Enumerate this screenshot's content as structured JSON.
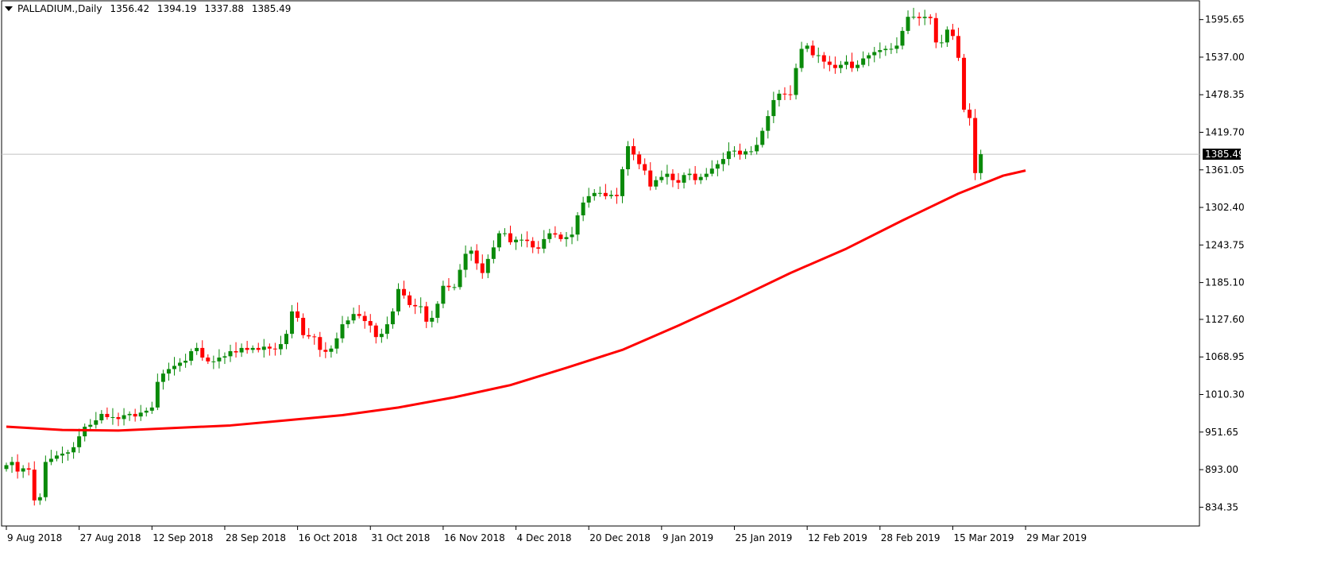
{
  "header": {
    "symbol": "PALLADIUM.,Daily",
    "open": "1356.42",
    "high": "1394.19",
    "low": "1337.88",
    "close": "1385.49"
  },
  "colors": {
    "bull": "#0a8a0a",
    "bear": "#ff0000",
    "ma": "#ff0000",
    "current_line": "#c0c0c0",
    "price_box_bg": "#000000",
    "price_box_fg": "#ffffff"
  },
  "chart_data": {
    "type": "candlestick",
    "title": "PALLADIUM.,Daily",
    "ylim": [
      805,
      1625
    ],
    "y_ticks": [
      "1595.65",
      "1537.00",
      "1478.35",
      "1419.70",
      "1361.05",
      "1302.40",
      "1243.75",
      "1185.10",
      "1127.60",
      "1068.95",
      "1010.30",
      "951.65",
      "893.00",
      "834.35"
    ],
    "current_price": "1385.49",
    "x_labels": [
      "9 Aug 2018",
      "27 Aug 2018",
      "12 Sep 2018",
      "28 Sep 2018",
      "16 Oct 2018",
      "31 Oct 2018",
      "16 Nov 2018",
      "4 Dec 2018",
      "20 Dec 2018",
      "9 Jan 2019",
      "25 Jan 2019",
      "12 Feb 2019",
      "28 Feb 2019",
      "15 Mar 2019",
      "29 Mar 2019"
    ],
    "x_label_index": [
      0,
      13,
      26,
      39,
      52,
      65,
      78,
      91,
      104,
      117,
      130,
      143,
      156,
      169,
      182
    ],
    "closes": [
      900,
      905,
      890,
      895,
      893,
      845,
      850,
      905,
      910,
      915,
      918,
      920,
      928,
      945,
      960,
      963,
      970,
      980,
      975,
      975,
      972,
      978,
      980,
      976,
      982,
      985,
      990,
      1030,
      1043,
      1050,
      1055,
      1060,
      1063,
      1078,
      1083,
      1068,
      1062,
      1062,
      1068,
      1070,
      1078,
      1076,
      1083,
      1080,
      1083,
      1080,
      1085,
      1082,
      1081,
      1089,
      1105,
      1140,
      1130,
      1103,
      1101,
      1100,
      1080,
      1077,
      1082,
      1098,
      1120,
      1126,
      1136,
      1133,
      1125,
      1118,
      1100,
      1105,
      1120,
      1140,
      1175,
      1165,
      1150,
      1148,
      1148,
      1124,
      1130,
      1152,
      1180,
      1178,
      1178,
      1205,
      1230,
      1235,
      1215,
      1200,
      1222,
      1240,
      1262,
      1262,
      1248,
      1252,
      1252,
      1250,
      1240,
      1238,
      1253,
      1262,
      1260,
      1253,
      1256,
      1260,
      1290,
      1310,
      1320,
      1325,
      1325,
      1320,
      1322,
      1320,
      1362,
      1398,
      1385,
      1370,
      1360,
      1335,
      1345,
      1350,
      1355,
      1345,
      1341,
      1353,
      1355,
      1345,
      1350,
      1355,
      1363,
      1370,
      1378,
      1390,
      1391,
      1385,
      1390,
      1390,
      1400,
      1422,
      1445,
      1470,
      1480,
      1479,
      1478,
      1520,
      1550,
      1555,
      1540,
      1540,
      1530,
      1525,
      1520,
      1525,
      1530,
      1520,
      1525,
      1535,
      1540,
      1545,
      1548,
      1550,
      1550,
      1555,
      1578,
      1600,
      1600,
      1598,
      1600,
      1598,
      1560,
      1560,
      1580,
      1570,
      1536,
      1455,
      1442,
      1356,
      1385.49
    ],
    "moving_average": {
      "points": [
        [
          0,
          960
        ],
        [
          10,
          955
        ],
        [
          20,
          954
        ],
        [
          30,
          958
        ],
        [
          40,
          962
        ],
        [
          50,
          970
        ],
        [
          60,
          978
        ],
        [
          70,
          990
        ],
        [
          80,
          1006
        ],
        [
          90,
          1025
        ],
        [
          100,
          1052
        ],
        [
          110,
          1080
        ],
        [
          120,
          1118
        ],
        [
          130,
          1158
        ],
        [
          140,
          1200
        ],
        [
          150,
          1238
        ],
        [
          160,
          1282
        ],
        [
          170,
          1324
        ],
        [
          178,
          1352
        ],
        [
          182,
          1360
        ]
      ]
    }
  }
}
